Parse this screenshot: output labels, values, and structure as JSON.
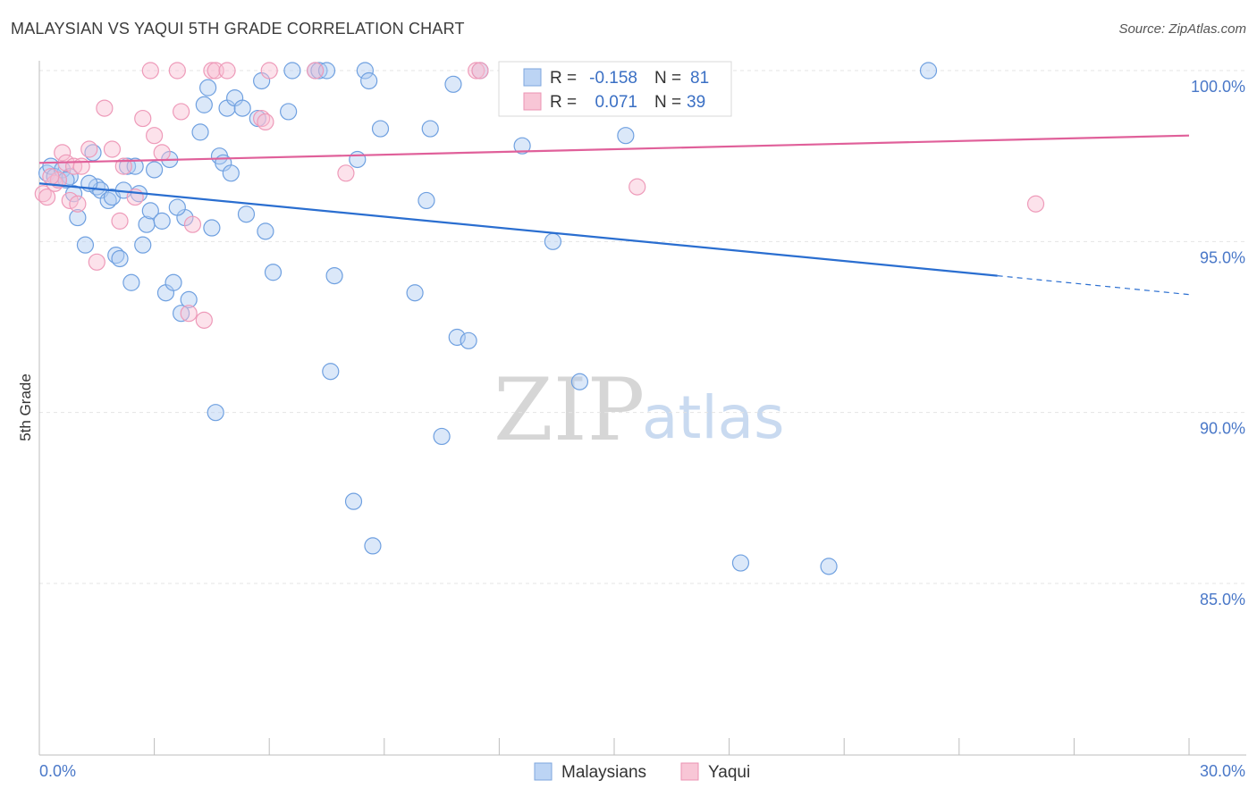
{
  "title": "MALAYSIAN VS YAQUI 5TH GRADE CORRELATION CHART",
  "source": "Source: ZipAtlas.com",
  "watermark": {
    "part1": "ZIP",
    "part2": "atlas"
  },
  "chart_data": {
    "type": "scatter",
    "ylabel": "5th Grade",
    "xlim": [
      0,
      30
    ],
    "ylim": [
      80.5,
      100.8
    ],
    "x_tick_labels": [
      "0.0%",
      "30.0%"
    ],
    "y_ticks": [
      {
        "value": 100,
        "label": "100.0%"
      },
      {
        "value": 95,
        "label": "95.0%"
      },
      {
        "value": 90,
        "label": "90.0%"
      },
      {
        "value": 85,
        "label": "85.0%"
      }
    ],
    "legend": {
      "rows": [
        {
          "r_label": "R =",
          "r_value": "-0.158",
          "n_label": "N =",
          "n_value": "81"
        },
        {
          "r_label": "R =",
          "r_value": "0.071",
          "n_label": "N =",
          "n_value": "39"
        }
      ]
    },
    "series": [
      {
        "name": "Malaysians",
        "color": "#6fa0e0",
        "trend": {
          "x0": 0,
          "y0": 96.7,
          "x1": 25,
          "y1": 94.0,
          "dash_to_x": 30,
          "dash_to_y": 93.45,
          "color": "#2a6ed0"
        },
        "points": [
          [
            0.2,
            97.0
          ],
          [
            0.3,
            97.2
          ],
          [
            0.4,
            96.9
          ],
          [
            0.5,
            96.8
          ],
          [
            0.6,
            97.1
          ],
          [
            0.8,
            96.9
          ],
          [
            0.9,
            96.4
          ],
          [
            1.0,
            95.7
          ],
          [
            1.2,
            94.9
          ],
          [
            1.4,
            97.6
          ],
          [
            1.5,
            96.6
          ],
          [
            1.6,
            96.5
          ],
          [
            1.8,
            96.2
          ],
          [
            1.9,
            96.3
          ],
          [
            2.0,
            94.6
          ],
          [
            2.1,
            94.5
          ],
          [
            2.3,
            97.2
          ],
          [
            2.4,
            93.8
          ],
          [
            2.5,
            97.2
          ],
          [
            2.6,
            96.4
          ],
          [
            2.7,
            94.9
          ],
          [
            2.8,
            95.5
          ],
          [
            2.9,
            95.9
          ],
          [
            3.0,
            97.1
          ],
          [
            3.2,
            95.6
          ],
          [
            3.3,
            93.5
          ],
          [
            3.4,
            97.4
          ],
          [
            3.5,
            93.8
          ],
          [
            3.7,
            92.9
          ],
          [
            3.8,
            95.7
          ],
          [
            3.9,
            93.3
          ],
          [
            4.2,
            98.2
          ],
          [
            4.3,
            99.0
          ],
          [
            4.4,
            99.5
          ],
          [
            4.5,
            95.4
          ],
          [
            4.6,
            90.0
          ],
          [
            4.7,
            97.5
          ],
          [
            4.8,
            97.3
          ],
          [
            4.9,
            98.9
          ],
          [
            5.0,
            97.0
          ],
          [
            5.1,
            99.2
          ],
          [
            5.3,
            98.9
          ],
          [
            5.4,
            95.8
          ],
          [
            5.7,
            98.6
          ],
          [
            5.8,
            99.7
          ],
          [
            5.9,
            95.3
          ],
          [
            6.1,
            94.1
          ],
          [
            6.5,
            98.8
          ],
          [
            6.6,
            100.0
          ],
          [
            7.2,
            100.0
          ],
          [
            7.3,
            100.0
          ],
          [
            7.5,
            100.0
          ],
          [
            7.6,
            91.2
          ],
          [
            7.7,
            94.0
          ],
          [
            8.2,
            87.4
          ],
          [
            8.3,
            97.4
          ],
          [
            8.5,
            100.0
          ],
          [
            8.6,
            99.7
          ],
          [
            8.7,
            86.1
          ],
          [
            8.9,
            98.3
          ],
          [
            9.8,
            93.5
          ],
          [
            10.1,
            96.2
          ],
          [
            10.2,
            98.3
          ],
          [
            10.5,
            89.3
          ],
          [
            10.8,
            99.6
          ],
          [
            10.9,
            92.2
          ],
          [
            11.2,
            92.1
          ],
          [
            11.5,
            100.0
          ],
          [
            12.6,
            97.8
          ],
          [
            13.4,
            95.0
          ],
          [
            13.9,
            100.0
          ],
          [
            14.1,
            90.9
          ],
          [
            15.3,
            98.1
          ],
          [
            16.3,
            100.0
          ],
          [
            18.3,
            85.6
          ],
          [
            20.6,
            85.5
          ],
          [
            23.2,
            100.0
          ],
          [
            0.7,
            96.8
          ],
          [
            1.3,
            96.7
          ],
          [
            2.2,
            96.5
          ],
          [
            3.6,
            96.0
          ]
        ]
      },
      {
        "name": "Yaqui",
        "color": "#f2a3bf",
        "trend": {
          "x0": 0,
          "y0": 97.3,
          "x1": 30,
          "y1": 98.1,
          "color": "#e0609a"
        },
        "points": [
          [
            0.1,
            96.4
          ],
          [
            0.2,
            96.3
          ],
          [
            0.4,
            96.7
          ],
          [
            0.5,
            96.8
          ],
          [
            0.6,
            97.6
          ],
          [
            0.7,
            97.3
          ],
          [
            0.8,
            96.2
          ],
          [
            0.9,
            97.2
          ],
          [
            1.0,
            96.1
          ],
          [
            1.1,
            97.2
          ],
          [
            1.3,
            97.7
          ],
          [
            1.5,
            94.4
          ],
          [
            1.7,
            98.9
          ],
          [
            1.9,
            97.7
          ],
          [
            2.1,
            95.6
          ],
          [
            2.2,
            97.2
          ],
          [
            2.5,
            96.3
          ],
          [
            2.7,
            98.6
          ],
          [
            2.9,
            100.0
          ],
          [
            3.0,
            98.1
          ],
          [
            3.2,
            97.6
          ],
          [
            3.6,
            100.0
          ],
          [
            3.7,
            98.8
          ],
          [
            3.9,
            92.9
          ],
          [
            4.0,
            95.5
          ],
          [
            4.3,
            92.7
          ],
          [
            4.5,
            100.0
          ],
          [
            4.6,
            100.0
          ],
          [
            4.9,
            100.0
          ],
          [
            5.8,
            98.6
          ],
          [
            5.9,
            98.5
          ],
          [
            6.0,
            100.0
          ],
          [
            7.2,
            100.0
          ],
          [
            8.0,
            97.0
          ],
          [
            11.4,
            100.0
          ],
          [
            11.5,
            100.0
          ],
          [
            15.6,
            96.6
          ],
          [
            26.0,
            96.1
          ],
          [
            0.3,
            96.9
          ]
        ]
      }
    ]
  }
}
